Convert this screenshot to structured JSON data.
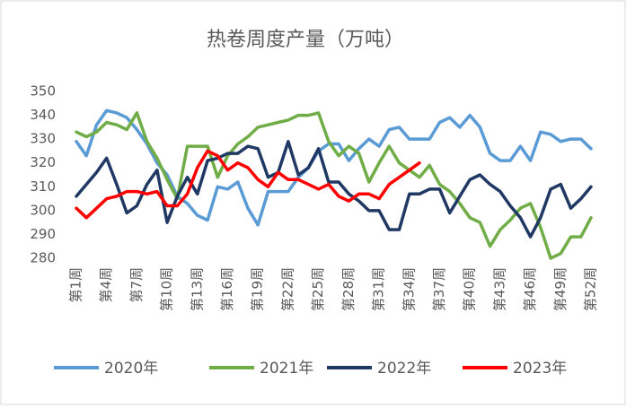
{
  "chart_data": {
    "type": "line",
    "title": "热卷周度产量（万吨）",
    "categories": [
      "第1周",
      null,
      null,
      "第4周",
      null,
      null,
      "第7周",
      null,
      null,
      "第10周",
      null,
      null,
      "第13周",
      null,
      null,
      "第16周",
      null,
      null,
      "第19周",
      null,
      null,
      "第22周",
      null,
      null,
      "第25周",
      null,
      null,
      "第28周",
      null,
      null,
      "第31周",
      null,
      null,
      "第34周",
      null,
      null,
      "第37周",
      null,
      null,
      "第40周",
      null,
      null,
      "第43周",
      null,
      null,
      "第46周",
      null,
      null,
      "第49周",
      null,
      null,
      "第52周"
    ],
    "series": [
      {
        "name": "2020年",
        "color": "#5b9bd5",
        "values": [
          329,
          323,
          336,
          342,
          341,
          339,
          334,
          328,
          320,
          315,
          306,
          303,
          298,
          296,
          310,
          309,
          312,
          301,
          294,
          308,
          308,
          308,
          314,
          318,
          325,
          328,
          328,
          321,
          326,
          330,
          327,
          334,
          335,
          330,
          330,
          330,
          337,
          339,
          335,
          340,
          335,
          324,
          321,
          321,
          327,
          321,
          333,
          332,
          329,
          330,
          330,
          326
        ]
      },
      {
        "name": "2021年",
        "color": "#70ad47",
        "values": [
          333,
          331,
          333,
          337,
          336,
          334,
          341,
          329,
          322,
          313,
          305,
          327,
          327,
          327,
          314,
          323,
          328,
          331,
          335,
          336,
          337,
          338,
          340,
          340,
          341,
          329,
          323,
          327,
          324,
          312,
          320,
          327,
          320,
          317,
          314,
          319,
          311,
          308,
          303,
          297,
          295,
          285,
          292,
          296,
          301,
          303,
          293,
          280,
          282,
          289,
          289,
          297
        ]
      },
      {
        "name": "2022年",
        "color": "#203864",
        "values": [
          306,
          311,
          316,
          322,
          311,
          299,
          302,
          311,
          317,
          295,
          306,
          314,
          307,
          321,
          322,
          324,
          324,
          327,
          326,
          314,
          316,
          329,
          315,
          318,
          326,
          312,
          312,
          307,
          304,
          300,
          300,
          292,
          292,
          307,
          307,
          309,
          309,
          299,
          306,
          313,
          315,
          311,
          308,
          302,
          297,
          289,
          297,
          309,
          311,
          301,
          305,
          310
        ]
      },
      {
        "name": "2023年",
        "color": "#ff0000",
        "values": [
          301,
          297,
          301,
          305,
          306,
          308,
          308,
          307,
          308,
          302,
          302,
          307,
          318,
          325,
          323,
          317,
          320,
          318,
          313,
          310,
          316,
          313,
          313,
          311,
          309,
          311,
          306,
          304,
          307,
          307,
          305,
          311,
          314,
          317,
          320,
          null,
          null,
          null,
          null,
          null,
          null,
          null,
          null,
          null,
          null,
          null,
          null,
          null,
          null,
          null,
          null,
          null
        ]
      }
    ],
    "ylim": [
      280,
      350
    ],
    "yticks": [
      280,
      290,
      300,
      310,
      320,
      330,
      340,
      350
    ],
    "grid": false
  }
}
